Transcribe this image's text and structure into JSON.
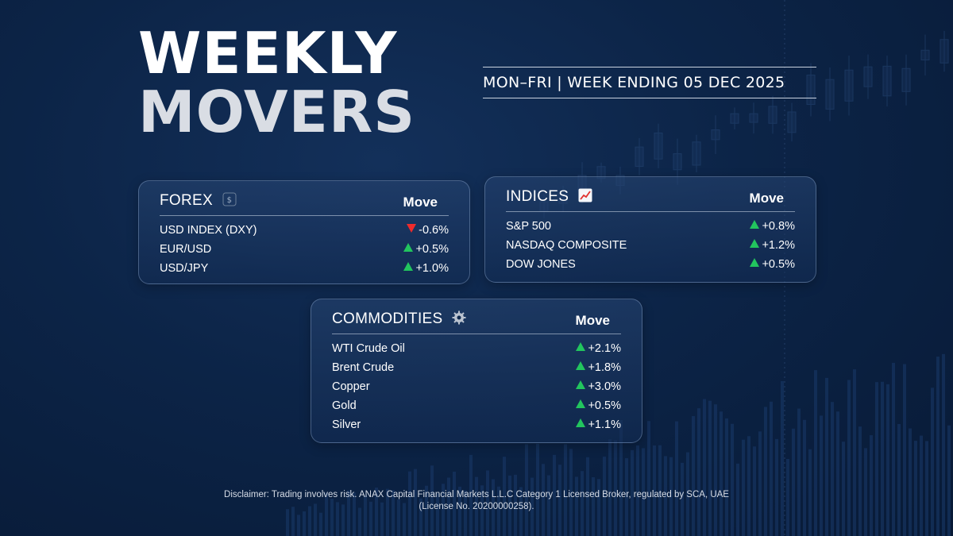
{
  "header": {
    "title_line1": "WEEKLY",
    "title_line2": "MOVERS",
    "subtitle": "MON–FRI | WEEK ENDING 05 DEC 2025"
  },
  "move_header": "Move",
  "forex": {
    "title": "FOREX",
    "icon": "currency-exchange-icon",
    "rows": [
      {
        "name": "USD INDEX (DXY)",
        "value": "-0.6%",
        "direction": "down"
      },
      {
        "name": "EUR/USD",
        "value": "+0.5%",
        "direction": "up"
      },
      {
        "name": "USD/JPY",
        "value": "+1.0%",
        "direction": "up"
      }
    ]
  },
  "indices": {
    "title": "INDICES",
    "icon": "chart-increasing-icon",
    "rows": [
      {
        "name": "S&P 500",
        "value": "+0.8%",
        "direction": "up"
      },
      {
        "name": "NASDAQ COMPOSITE",
        "value": "+1.2%",
        "direction": "up"
      },
      {
        "name": "DOW JONES",
        "value": "+0.5%",
        "direction": "up"
      }
    ]
  },
  "commodities": {
    "title": "COMMODITIES",
    "icon": "gear-icon",
    "rows": [
      {
        "name": "WTI Crude Oil",
        "value": "+2.1%",
        "direction": "up"
      },
      {
        "name": "Brent Crude",
        "value": "+1.8%",
        "direction": "up"
      },
      {
        "name": "Copper",
        "value": "+3.0%",
        "direction": "up"
      },
      {
        "name": "Gold",
        "value": "+0.5%",
        "direction": "up"
      },
      {
        "name": "Silver",
        "value": "+1.1%",
        "direction": "up"
      }
    ]
  },
  "colors": {
    "background": "#0c2447",
    "up": "#22c55e",
    "down": "#ef2b2b"
  },
  "disclaimer": "Disclaimer: Trading involves risk. ANAX Capital Financial Markets L.L.C Category 1 Licensed Broker, regulated by SCA, UAE (License No. 20200000258)."
}
